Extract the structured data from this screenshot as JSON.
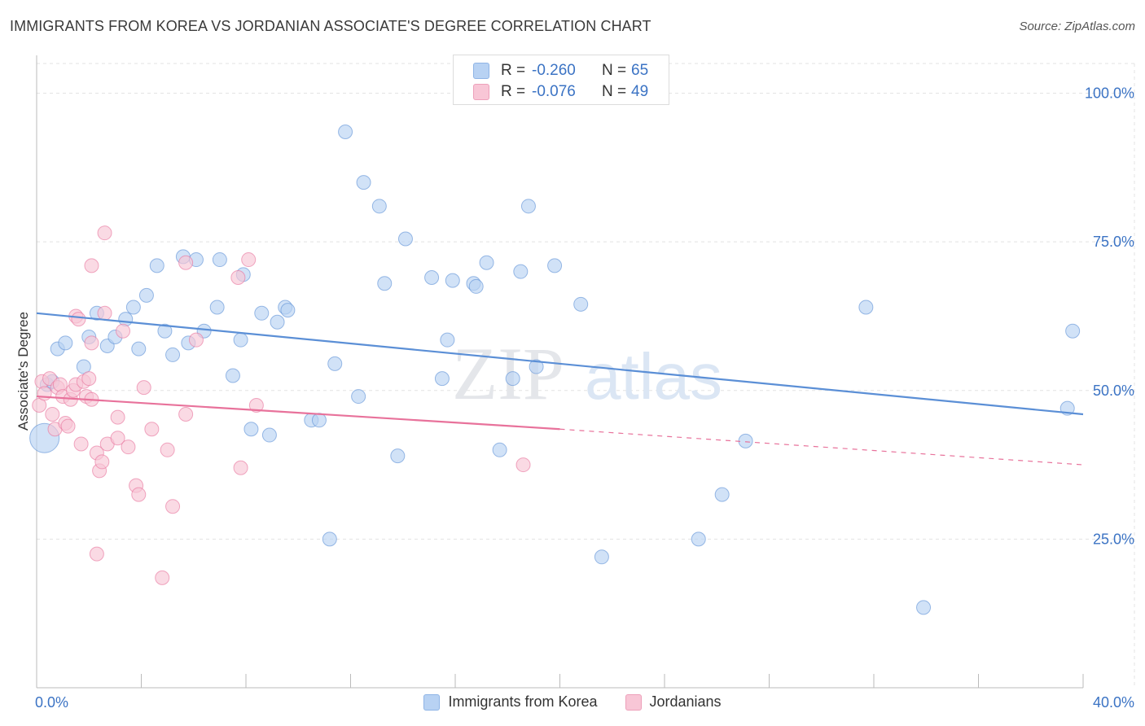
{
  "title": "IMMIGRANTS FROM KOREA VS JORDANIAN ASSOCIATE'S DEGREE CORRELATION CHART",
  "source": "Source: ZipAtlas.com",
  "watermark": {
    "zip": "ZIP",
    "atlas": "atlas"
  },
  "stats": [
    {
      "r_label": "R =",
      "r_value": "-0.260",
      "n_label": "N =",
      "n_value": "65",
      "color": "#b8d2f3"
    },
    {
      "r_label": "R =",
      "r_value": "-0.076",
      "n_label": "N =",
      "n_value": "49",
      "color": "#f8c6d6"
    }
  ],
  "legend": {
    "series1": "Immigrants from Korea",
    "series2": "Jordanians"
  },
  "chart_data": {
    "type": "scatter",
    "title": "IMMIGRANTS FROM KOREA VS JORDANIAN ASSOCIATE'S DEGREE CORRELATION CHART",
    "xlabel": "",
    "ylabel": "Associate's Degree",
    "xlim": [
      0,
      40
    ],
    "ylim": [
      0,
      105
    ],
    "x_tick_labels": [
      "0.0%",
      "40.0%"
    ],
    "y_ticks": [
      25,
      50,
      75,
      100
    ],
    "y_tick_labels": [
      "25.0%",
      "50.0%",
      "75.0%",
      "100.0%"
    ],
    "grid": true,
    "series": [
      {
        "name": "Immigrants from Korea",
        "color": "#5b8fd6",
        "fill": "#b8d2f3",
        "trend": {
          "x0": 0,
          "y0": 63.0,
          "x1": 40,
          "y1": 46.0
        },
        "points": [
          [
            0.3,
            42.0
          ],
          [
            0.4,
            51.0
          ],
          [
            0.8,
            57.0
          ],
          [
            1.1,
            58.0
          ],
          [
            1.8,
            54.0
          ],
          [
            2.0,
            59.0
          ],
          [
            2.3,
            63.0
          ],
          [
            2.7,
            57.5
          ],
          [
            3.0,
            59.0
          ],
          [
            3.4,
            62.0
          ],
          [
            3.7,
            64.0
          ],
          [
            3.9,
            57.0
          ],
          [
            4.2,
            66.0
          ],
          [
            4.6,
            71.0
          ],
          [
            4.9,
            60.0
          ],
          [
            5.2,
            56.0
          ],
          [
            5.6,
            72.5
          ],
          [
            5.8,
            58.0
          ],
          [
            6.1,
            72.0
          ],
          [
            6.4,
            60.0
          ],
          [
            6.9,
            64.0
          ],
          [
            7.0,
            72.0
          ],
          [
            7.5,
            52.5
          ],
          [
            7.8,
            58.5
          ],
          [
            7.9,
            69.5
          ],
          [
            8.2,
            43.5
          ],
          [
            8.6,
            63.0
          ],
          [
            8.9,
            42.5
          ],
          [
            9.2,
            61.5
          ],
          [
            9.5,
            64.0
          ],
          [
            9.6,
            63.5
          ],
          [
            10.5,
            45.0
          ],
          [
            10.8,
            45.0
          ],
          [
            11.2,
            25.0
          ],
          [
            11.4,
            54.5
          ],
          [
            11.8,
            93.5
          ],
          [
            12.3,
            49.0
          ],
          [
            12.5,
            85.0
          ],
          [
            13.1,
            81.0
          ],
          [
            13.3,
            68.0
          ],
          [
            13.8,
            39.0
          ],
          [
            14.1,
            75.5
          ],
          [
            15.1,
            69.0
          ],
          [
            15.5,
            52.0
          ],
          [
            15.7,
            58.5
          ],
          [
            15.9,
            68.5
          ],
          [
            16.7,
            68.0
          ],
          [
            16.8,
            67.5
          ],
          [
            17.2,
            71.5
          ],
          [
            17.7,
            40.0
          ],
          [
            18.2,
            52.0
          ],
          [
            18.5,
            70.0
          ],
          [
            18.8,
            81.0
          ],
          [
            19.1,
            54.0
          ],
          [
            19.8,
            71.0
          ],
          [
            20.8,
            64.5
          ],
          [
            21.6,
            22.0
          ],
          [
            25.3,
            25.0
          ],
          [
            26.2,
            32.5
          ],
          [
            27.1,
            41.5
          ],
          [
            31.7,
            64.0
          ],
          [
            33.9,
            13.5
          ],
          [
            39.4,
            47.0
          ],
          [
            39.6,
            60.0
          ],
          [
            0.6,
            51.5
          ]
        ]
      },
      {
        "name": "Jordanians",
        "color": "#e8729b",
        "fill": "#f8c6d6",
        "trend": {
          "x0": 0,
          "y0": 49.0,
          "x1": 20,
          "y1": 43.5,
          "dash_to_x": 40,
          "dash_to_y": 37.5
        },
        "points": [
          [
            0.1,
            47.5
          ],
          [
            0.2,
            51.5
          ],
          [
            0.3,
            49.5
          ],
          [
            0.5,
            52.0
          ],
          [
            0.6,
            46.0
          ],
          [
            0.7,
            43.5
          ],
          [
            0.8,
            50.5
          ],
          [
            0.9,
            51.0
          ],
          [
            1.0,
            49.0
          ],
          [
            1.1,
            44.5
          ],
          [
            1.3,
            48.5
          ],
          [
            1.4,
            50.0
          ],
          [
            1.5,
            51.0
          ],
          [
            1.5,
            62.5
          ],
          [
            1.6,
            62.0
          ],
          [
            1.7,
            41.0
          ],
          [
            1.8,
            51.5
          ],
          [
            1.9,
            49.0
          ],
          [
            2.0,
            52.0
          ],
          [
            2.1,
            48.5
          ],
          [
            2.1,
            58.0
          ],
          [
            2.1,
            71.0
          ],
          [
            2.3,
            22.5
          ],
          [
            2.3,
            39.5
          ],
          [
            2.4,
            36.5
          ],
          [
            2.5,
            38.0
          ],
          [
            2.6,
            63.0
          ],
          [
            2.6,
            76.5
          ],
          [
            2.7,
            41.0
          ],
          [
            3.1,
            45.5
          ],
          [
            3.1,
            42.0
          ],
          [
            3.3,
            60.0
          ],
          [
            3.5,
            40.5
          ],
          [
            3.8,
            34.0
          ],
          [
            3.9,
            32.5
          ],
          [
            4.1,
            50.5
          ],
          [
            4.4,
            43.5
          ],
          [
            4.8,
            18.5
          ],
          [
            5.0,
            40.0
          ],
          [
            5.2,
            30.5
          ],
          [
            5.7,
            46.0
          ],
          [
            5.7,
            71.5
          ],
          [
            6.1,
            58.5
          ],
          [
            7.7,
            69.0
          ],
          [
            7.8,
            37.0
          ],
          [
            8.1,
            72.0
          ],
          [
            8.4,
            47.5
          ],
          [
            18.6,
            37.5
          ],
          [
            1.2,
            44.0
          ]
        ]
      }
    ]
  }
}
